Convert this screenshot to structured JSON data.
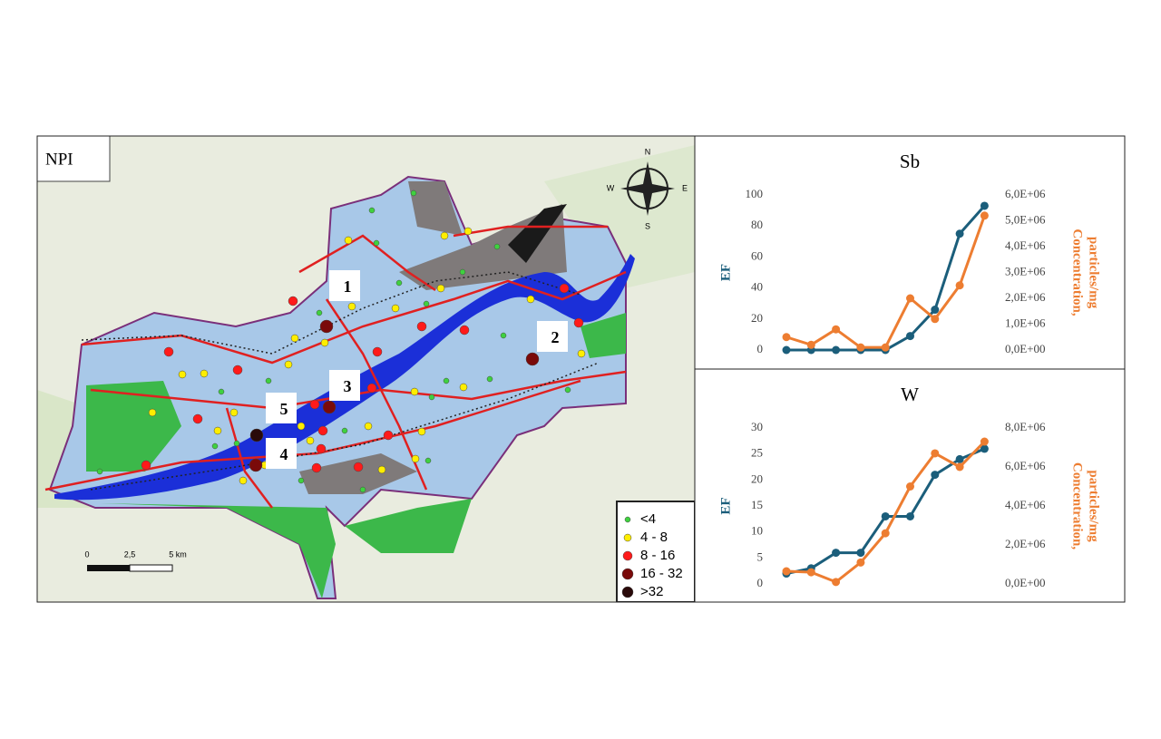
{
  "map": {
    "label": "NPI",
    "compass": [
      "N",
      "E",
      "S",
      "W"
    ],
    "scale": [
      "0",
      "2,5",
      "5 km"
    ],
    "sites": [
      "1",
      "2",
      "3",
      "4",
      "5"
    ],
    "legend": [
      {
        "label": "<4",
        "color": "#3fd13f"
      },
      {
        "label": "4 - 8",
        "color": "#ffee00"
      },
      {
        "label": "8 - 16",
        "color": "#ff1a1a"
      },
      {
        "label": "16 - 32",
        "color": "#7a0a0a"
      },
      {
        "label": ">32",
        "color": "#2a0a0a"
      }
    ]
  },
  "chart_data": [
    {
      "type": "line",
      "title": "Sb",
      "ylabel": "EF",
      "y2label": [
        "Concentration,",
        "particles/mg"
      ],
      "categories": [
        null,
        null,
        null,
        null,
        null,
        null,
        null,
        null,
        null
      ],
      "ylim": [
        0,
        100
      ],
      "yticks": [
        0,
        20,
        40,
        60,
        80,
        100
      ],
      "y2lim": [
        0,
        6000000
      ],
      "y2ticks": [
        {
          "value": 0,
          "label": "0,0E+00"
        },
        {
          "value": 1000000,
          "label": "1,0E+06"
        },
        {
          "value": 2000000,
          "label": "2,0E+06"
        },
        {
          "value": 3000000,
          "label": "3,0E+06"
        },
        {
          "value": 4000000,
          "label": "4,0E+06"
        },
        {
          "value": 5000000,
          "label": "5,0E+06"
        },
        {
          "value": 6000000,
          "label": "6,0E+06"
        }
      ],
      "series": [
        {
          "color": "#1b5e7b",
          "values": [
            0,
            0,
            0,
            0,
            0,
            9,
            26,
            75,
            93
          ]
        },
        {
          "color": "#ed7d31",
          "axis": "y2",
          "values": [
            500000,
            200000,
            800000,
            100000,
            100000,
            2000000,
            1200000,
            2500000,
            5200000
          ]
        }
      ]
    },
    {
      "type": "line",
      "title": "W",
      "ylabel": "EF",
      "y2label": [
        "Concentration,",
        "particles/mg"
      ],
      "categories": [
        null,
        null,
        null,
        null,
        null,
        null,
        null,
        null,
        null
      ],
      "ylim": [
        0,
        30
      ],
      "yticks": [
        0,
        5,
        10,
        15,
        20,
        25,
        30
      ],
      "y2lim": [
        0,
        8000000
      ],
      "y2ticks": [
        {
          "value": 0,
          "label": "0,0E+00"
        },
        {
          "value": 2000000,
          "label": "2,0E+06"
        },
        {
          "value": 4000000,
          "label": "4,0E+06"
        },
        {
          "value": 6000000,
          "label": "6,0E+06"
        },
        {
          "value": 8000000,
          "label": "8,0E+06"
        }
      ],
      "series": [
        {
          "color": "#1b5e7b",
          "values": [
            2,
            3,
            6,
            6,
            13,
            13,
            21,
            24,
            26
          ]
        },
        {
          "color": "#ed7d31",
          "axis": "y2",
          "values": [
            650000,
            600000,
            100000,
            1100000,
            2600000,
            5000000,
            6700000,
            6000000,
            7300000
          ]
        }
      ]
    }
  ]
}
